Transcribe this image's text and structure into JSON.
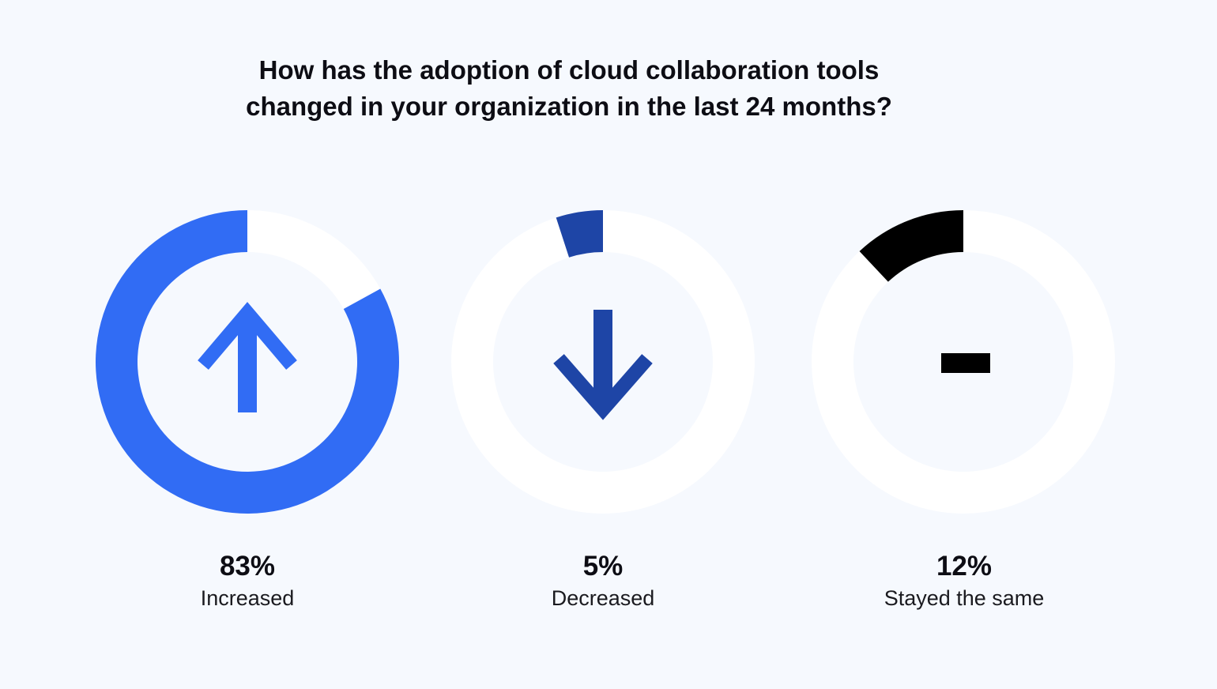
{
  "chart_data": {
    "type": "pie",
    "title_lines": [
      "How has the adoption of cloud collaboration tools",
      "changed in your organization in the last 24 months?"
    ],
    "unit": "%",
    "segments": [
      {
        "label": "Increased",
        "value": 83,
        "value_label": "83%",
        "color": "#316cf4",
        "icon": "arrow-up-icon"
      },
      {
        "label": "Decreased",
        "value": 5,
        "value_label": "5%",
        "color": "#1e45a6",
        "icon": "arrow-down-icon"
      },
      {
        "label": "Stayed the same",
        "value": 12,
        "value_label": "12%",
        "color": "#000000",
        "icon": "minus-icon"
      }
    ],
    "track_color": "#ffffff",
    "background_color": "#f6f9fe"
  }
}
